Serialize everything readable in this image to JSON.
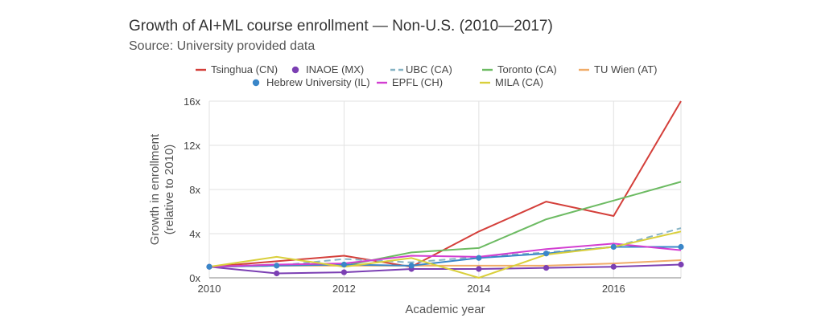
{
  "chart_data": {
    "type": "line",
    "title": "Growth of AI+ML course enrollment — Non-U.S. (2010—2017)",
    "subtitle": "Source: University provided data",
    "xlabel": "Academic year",
    "ylabel_lines": [
      "Growth in enrollment",
      "(relative to 2010)"
    ],
    "x": [
      2010,
      2011,
      2012,
      2013,
      2014,
      2015,
      2016,
      2017
    ],
    "x_ticks": [
      2010,
      2012,
      2014,
      2016
    ],
    "x_tick_labels": [
      "2010",
      "2012",
      "2014",
      "2016"
    ],
    "xlim": [
      2010,
      2017
    ],
    "ylim": [
      0,
      16
    ],
    "y_ticks": [
      0,
      4,
      8,
      12,
      16
    ],
    "y_tick_labels": [
      "0x",
      "4x",
      "8x",
      "12x",
      "16x"
    ],
    "grid": true,
    "legend_position": "top",
    "series": [
      {
        "name": "Tsinghua (CN)",
        "color": "#d43f3a",
        "style": "line",
        "values": [
          1.0,
          1.5,
          2.0,
          1.0,
          4.2,
          6.9,
          5.6,
          16.0
        ]
      },
      {
        "name": "INAOE (MX)",
        "color": "#7b3fb3",
        "style": "line-markers",
        "values": [
          1.0,
          0.4,
          0.5,
          0.8,
          0.8,
          0.9,
          1.0,
          1.2
        ]
      },
      {
        "name": "UBC (CA)",
        "color": "#86b3c4",
        "style": "dashed",
        "values": [
          1.0,
          1.1,
          1.7,
          1.4,
          1.9,
          2.3,
          2.8,
          4.5
        ]
      },
      {
        "name": "Toronto (CA)",
        "color": "#6dbb63",
        "style": "line",
        "values": [
          1.0,
          1.2,
          1.1,
          2.3,
          2.7,
          5.3,
          7.0,
          8.7
        ]
      },
      {
        "name": "TU Wien (AT)",
        "color": "#f0ac68",
        "style": "line",
        "values": [
          1.0,
          1.1,
          1.1,
          1.1,
          1.1,
          1.1,
          1.3,
          1.6
        ]
      },
      {
        "name": "Hebrew University (IL)",
        "color": "#3a86c8",
        "style": "line-markers",
        "values": [
          1.0,
          1.1,
          1.2,
          1.1,
          1.8,
          2.2,
          2.8,
          2.8
        ]
      },
      {
        "name": "EPFL (CH)",
        "color": "#d23ed1",
        "style": "line",
        "values": [
          1.0,
          1.2,
          1.3,
          2.0,
          1.9,
          2.6,
          3.1,
          2.5
        ]
      },
      {
        "name": "MILA (CA)",
        "color": "#d9cf3b",
        "style": "line",
        "values": [
          1.0,
          1.9,
          1.0,
          1.8,
          0.0,
          2.1,
          2.8,
          4.2
        ]
      }
    ]
  }
}
